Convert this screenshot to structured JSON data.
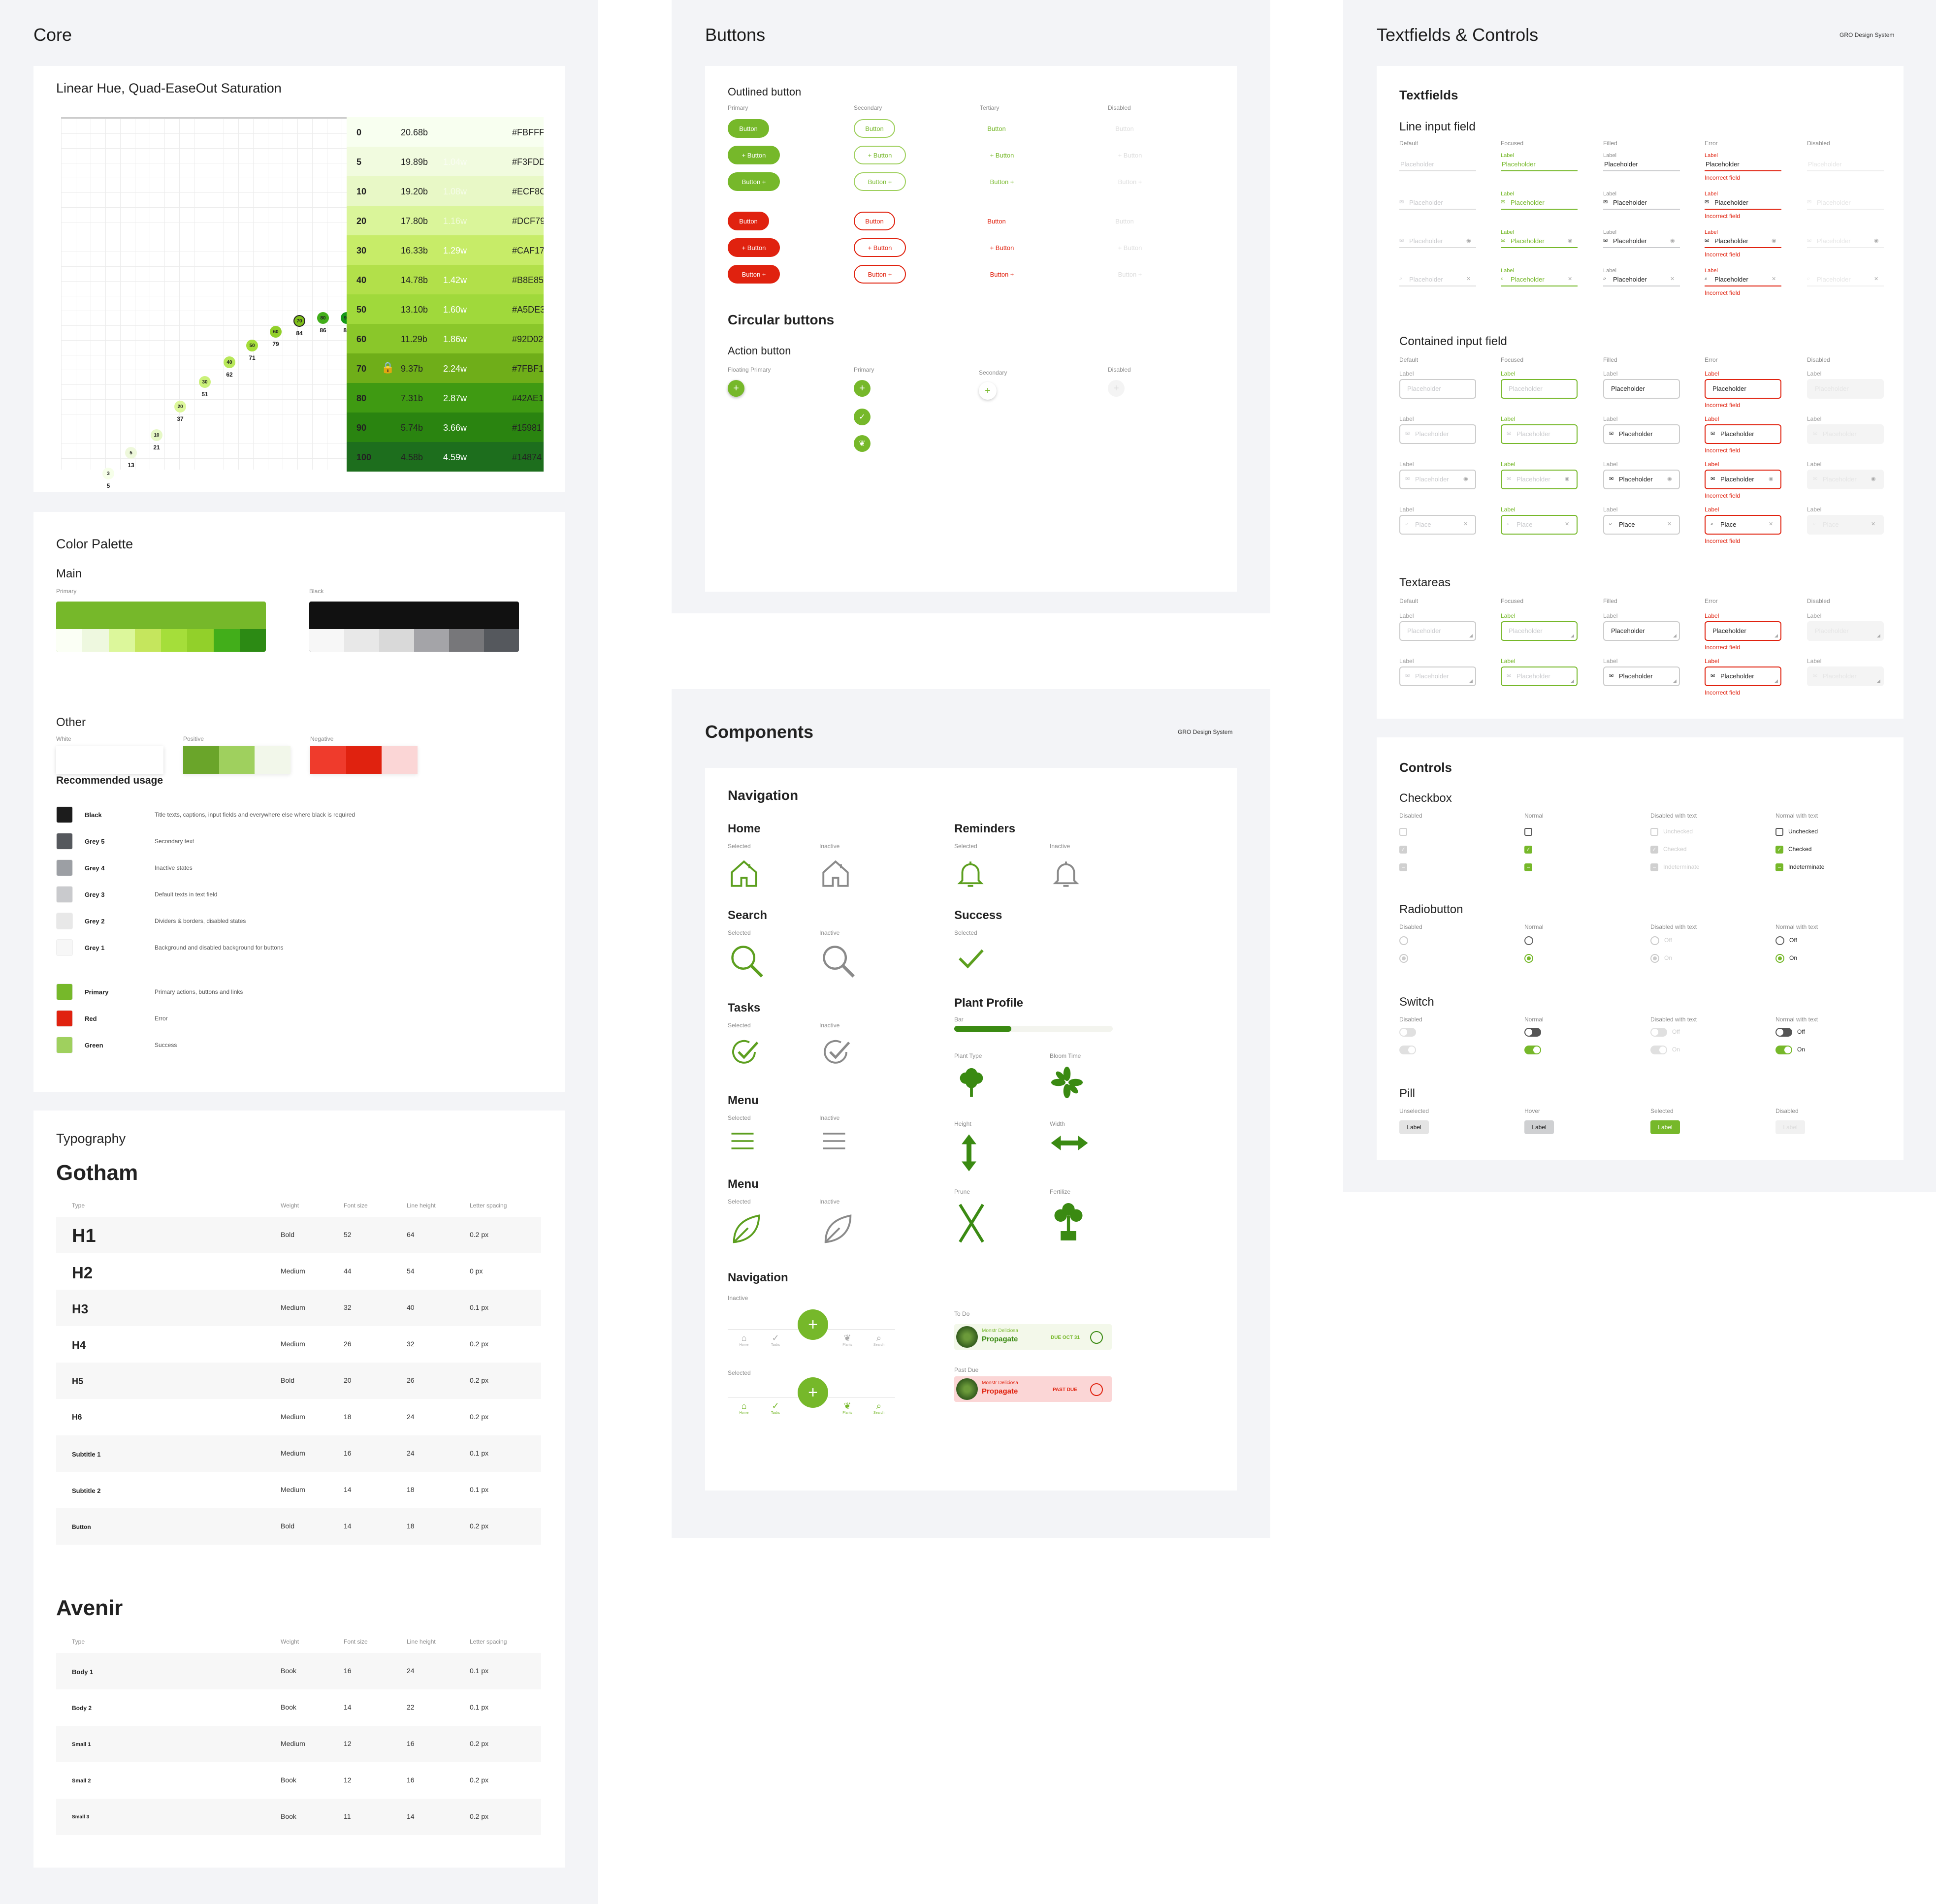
{
  "colors": {
    "primary": "#76b82a",
    "red": "#e0220f",
    "green": "#9fd05e",
    "black": "#1c1c1c"
  },
  "core": {
    "title": "Core",
    "scale": {
      "title": "Linear Hue, Quad-EaseOut Saturation",
      "rows": [
        {
          "step": "0",
          "b": "20.68b",
          "w": "",
          "hex": "#FBFFF"
        },
        {
          "step": "5",
          "b": "19.89b",
          "w": "1.04w",
          "hex": "#F3FDD"
        },
        {
          "step": "10",
          "b": "19.20b",
          "w": "1.08w",
          "hex": "#ECF8C"
        },
        {
          "step": "20",
          "b": "17.80b",
          "w": "1.16w",
          "hex": "#DCF79"
        },
        {
          "step": "30",
          "b": "16.33b",
          "w": "1.29w",
          "hex": "#CAF17"
        },
        {
          "step": "40",
          "b": "14.78b",
          "w": "1.42w",
          "hex": "#B8E85"
        },
        {
          "step": "50",
          "b": "13.10b",
          "w": "1.60w",
          "hex": "#A5DE3"
        },
        {
          "step": "60",
          "b": "11.29b",
          "w": "1.86w",
          "hex": "#92D02"
        },
        {
          "step": "70",
          "b": "9.37b",
          "w": "2.24w",
          "hex": "#7FBF1"
        },
        {
          "step": "80",
          "b": "7.31b",
          "w": "2.87w",
          "hex": "#42AE1"
        },
        {
          "step": "90",
          "b": "5.74b",
          "w": "3.66w",
          "hex": "#15981"
        },
        {
          "step": "100",
          "b": "4.58b",
          "w": "4.59w",
          "hex": "#14874"
        }
      ],
      "dots": [
        {
          "top": "3",
          "bottom": "5"
        },
        {
          "top": "5",
          "bottom": "13"
        },
        {
          "top": "10",
          "bottom": "21"
        },
        {
          "top": "20",
          "bottom": "37"
        },
        {
          "top": "30",
          "bottom": "51"
        },
        {
          "top": "40",
          "bottom": "62"
        },
        {
          "top": "50",
          "bottom": "71"
        },
        {
          "top": "60",
          "bottom": "79"
        },
        {
          "top": "70",
          "bottom": "84"
        },
        {
          "top": "80",
          "bottom": "86"
        },
        {
          "top": "90",
          "bottom": "86"
        },
        {
          "top": "100",
          "bottom": "86"
        }
      ]
    },
    "palette": {
      "title": "Color Palette",
      "main": "Main",
      "primary": "Primary",
      "black": "Black",
      "other": "Other",
      "white": "White",
      "positive": "Positive",
      "negative": "Negative",
      "usage_title": "Recommended usage",
      "usage": [
        {
          "name": "Black",
          "desc": "Title texts, captions, input fields and everywhere else where black is required",
          "color": "#1c1c1c"
        },
        {
          "name": "Grey 5",
          "desc": "Secondary text",
          "color": "#55585d"
        },
        {
          "name": "Grey 4",
          "desc": "Inactive states",
          "color": "#9c9fa4"
        },
        {
          "name": "Grey 3",
          "desc": "Default texts in text field",
          "color": "#c9cacd"
        },
        {
          "name": "Grey 2",
          "desc": "Dividers & borders, disabled states",
          "color": "#e8e8e8"
        },
        {
          "name": "Grey 1",
          "desc": "Background and disabled background for buttons",
          "color": "#f7f7f7"
        },
        {
          "name": "Primary",
          "desc": "Primary actions, buttons and links",
          "color": "#76b82a"
        },
        {
          "name": "Red",
          "desc": "Error",
          "color": "#e0220f"
        },
        {
          "name": "Green",
          "desc": "Success",
          "color": "#9fd05e"
        }
      ]
    },
    "typography": {
      "title": "Typography",
      "font1": "Gotham",
      "font2": "Avenir",
      "headers": {
        "type": "Type",
        "weight": "Weight",
        "size": "Font size",
        "lh": "Line height",
        "ls": "Letter spacing"
      },
      "gotham": [
        {
          "type": "H1",
          "weight": "Bold",
          "size": "52",
          "lh": "64",
          "ls": "0.2 px"
        },
        {
          "type": "H2",
          "weight": "Medium",
          "size": "44",
          "lh": "54",
          "ls": "0 px"
        },
        {
          "type": "H3",
          "weight": "Medium",
          "size": "32",
          "lh": "40",
          "ls": "0.1 px"
        },
        {
          "type": "H4",
          "weight": "Medium",
          "size": "26",
          "lh": "32",
          "ls": "0.2 px"
        },
        {
          "type": "H5",
          "weight": "Bold",
          "size": "20",
          "lh": "26",
          "ls": "0.2 px"
        },
        {
          "type": "H6",
          "weight": "Medium",
          "size": "18",
          "lh": "24",
          "ls": "0.2 px"
        },
        {
          "type": "Subtitle 1",
          "weight": "Medium",
          "size": "16",
          "lh": "24",
          "ls": "0.1 px"
        },
        {
          "type": "Subtitle 2",
          "weight": "Medium",
          "size": "14",
          "lh": "18",
          "ls": "0.1 px"
        },
        {
          "type": "Button",
          "weight": "Bold",
          "size": "14",
          "lh": "18",
          "ls": "0.2 px"
        }
      ],
      "avenir": [
        {
          "type": "Body 1",
          "weight": "Book",
          "size": "16",
          "lh": "24",
          "ls": "0.1 px"
        },
        {
          "type": "Body 2",
          "weight": "Book",
          "size": "14",
          "lh": "22",
          "ls": "0.1 px"
        },
        {
          "type": "Small 1",
          "weight": "Medium",
          "size": "12",
          "lh": "16",
          "ls": "0.2 px"
        },
        {
          "type": "Small 2",
          "weight": "Book",
          "size": "12",
          "lh": "16",
          "ls": "0.2 px"
        },
        {
          "type": "Small 3",
          "weight": "Book",
          "size": "11",
          "lh": "14",
          "ls": "0.2 px"
        }
      ]
    }
  },
  "buttons": {
    "title": "Buttons",
    "outlined": "Outlined button",
    "primary": "Primary",
    "secondary": "Secondary",
    "tertiary": "Tertiary",
    "disabled": "Disabled",
    "button": "Button",
    "plus_button": "+ Button",
    "button_plus": "Button +",
    "circular": "Circular buttons",
    "action": "Action button",
    "floating": "Floating Primary"
  },
  "components": {
    "title": "Components",
    "brand": "GRO Design System",
    "navigation": "Navigation",
    "selected": "Selected",
    "inactive": "Inactive",
    "home": "Home",
    "reminders": "Reminders",
    "search": "Search",
    "success": "Success",
    "tasks": "Tasks",
    "plant_profile": "Plant Profile",
    "bar": "Bar",
    "menu": "Menu",
    "menu2": "Menu",
    "plant_type": "Plant Type",
    "bloom_time": "Bloom Time",
    "height": "Height",
    "width": "Width",
    "prune": "Prune",
    "fertilize": "Fertilize",
    "nav2": "Navigation",
    "todo": "To Do",
    "pastdue": "Past Due",
    "card_sub": "Monstr Deliciosa",
    "card_title": "Propagate",
    "due": "DUE OCT 31",
    "past": "PAST DUE",
    "navitems": [
      "Home",
      "Tasks",
      "Plants",
      "Search"
    ]
  },
  "textfields": {
    "title": "Textfields & Controls",
    "brand": "GRO Design System",
    "section": "Textfields",
    "line": "Line input field",
    "contained": "Contained input field",
    "textareas": "Textareas",
    "states": [
      "Default",
      "Focused",
      "Filled",
      "Error",
      "Disabled"
    ],
    "label": "Label",
    "placeholder": "Placeholder",
    "place": "Place",
    "incorrect": "Incorrect field"
  },
  "controls": {
    "title": "Controls",
    "checkbox": "Checkbox",
    "radiobutton": "Radiobutton",
    "switch": "Switch",
    "pill": "Pill",
    "cols": [
      "Disabled",
      "Normal",
      "Disabled with text",
      "Normal with text"
    ],
    "unchecked": "Unchecked",
    "checked": "Checked",
    "indeterminate": "Indeterminate",
    "off": "Off",
    "on": "On",
    "pillcols": [
      "Unselected",
      "Hover",
      "Selected",
      "Disabled"
    ],
    "label": "Label"
  }
}
